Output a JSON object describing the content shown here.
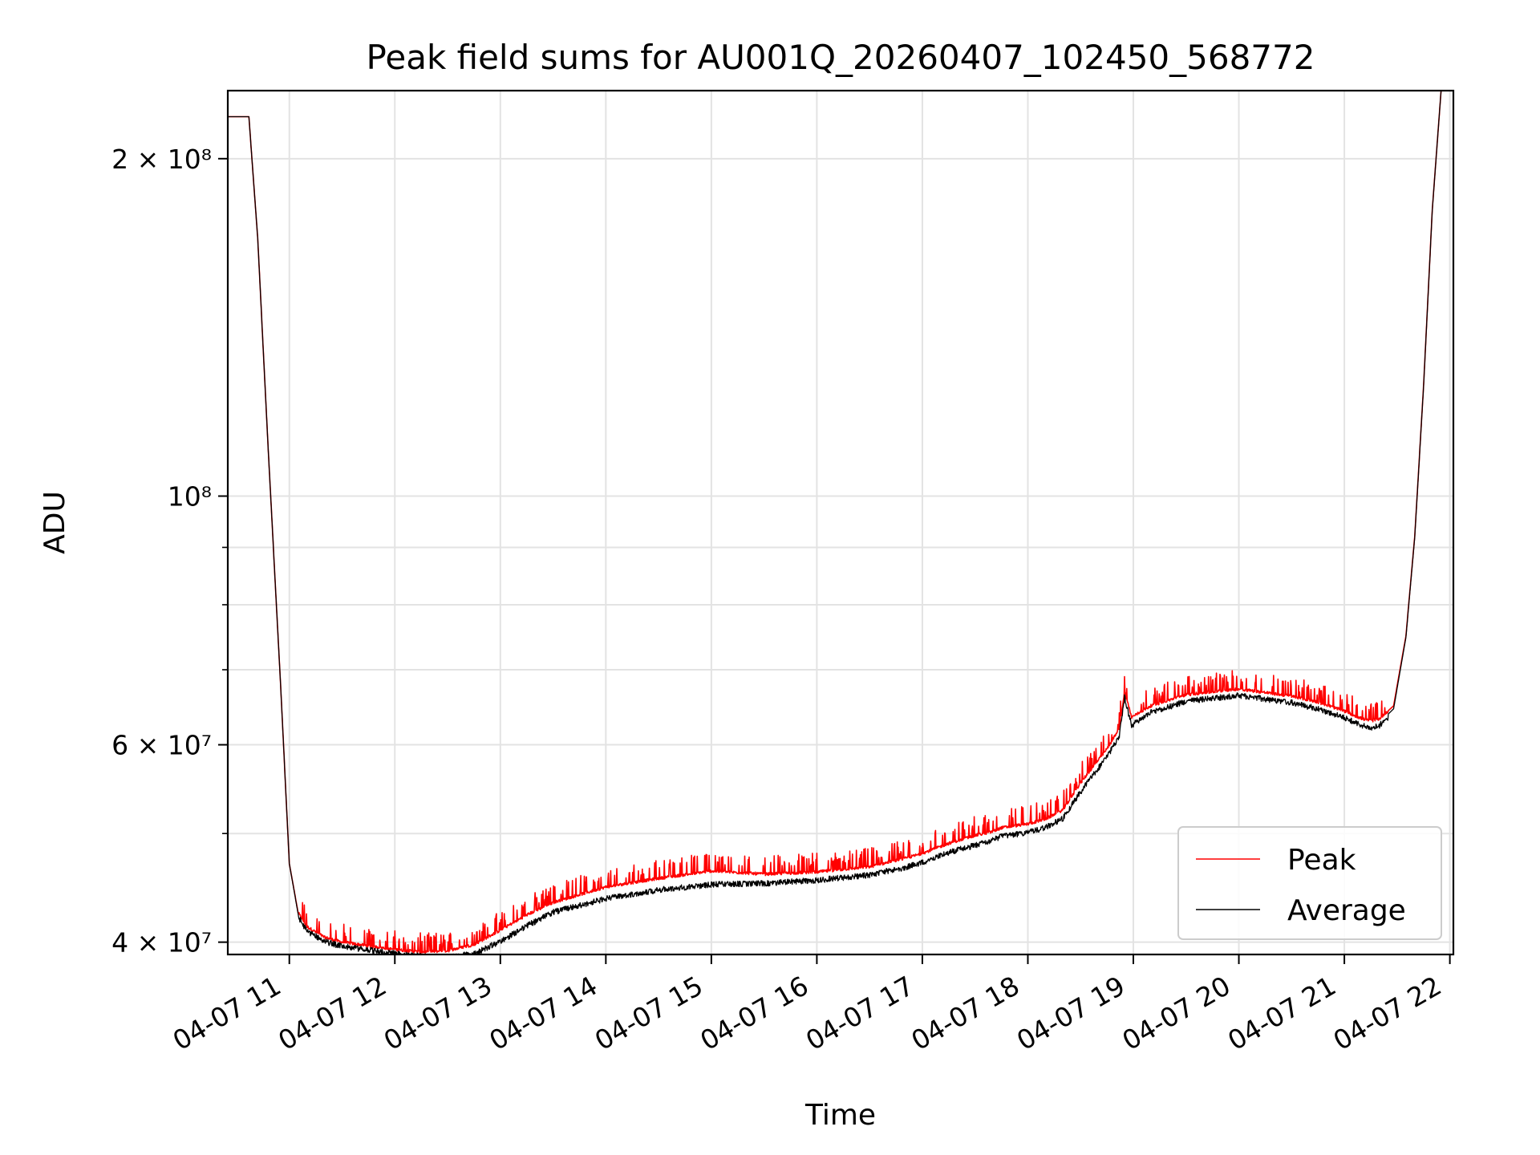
{
  "chart_data": {
    "type": "line",
    "title": "Peak field sums for AU001Q_20260407_102450_568772",
    "xlabel": "Time",
    "ylabel": "ADU",
    "yscale": "log",
    "ylim": [
      39000000,
      230000000
    ],
    "xlim": [
      "2026-04-07 10:25",
      "2026-04-07 22:02"
    ],
    "grid": true,
    "legend_position": "lower-right",
    "x_ticks": [
      {
        "t": "2026-04-07 11:00",
        "label": "04-07 11"
      },
      {
        "t": "2026-04-07 12:00",
        "label": "04-07 12"
      },
      {
        "t": "2026-04-07 13:00",
        "label": "04-07 13"
      },
      {
        "t": "2026-04-07 14:00",
        "label": "04-07 14"
      },
      {
        "t": "2026-04-07 15:00",
        "label": "04-07 15"
      },
      {
        "t": "2026-04-07 16:00",
        "label": "04-07 16"
      },
      {
        "t": "2026-04-07 17:00",
        "label": "04-07 17"
      },
      {
        "t": "2026-04-07 18:00",
        "label": "04-07 18"
      },
      {
        "t": "2026-04-07 19:00",
        "label": "04-07 19"
      },
      {
        "t": "2026-04-07 20:00",
        "label": "04-07 20"
      },
      {
        "t": "2026-04-07 21:00",
        "label": "04-07 21"
      },
      {
        "t": "2026-04-07 22:00",
        "label": "04-07 22"
      }
    ],
    "y_ticks": [
      {
        "value": 40000000,
        "label": "4 × 10⁷"
      },
      {
        "value": 60000000,
        "label": "6 × 10⁷"
      },
      {
        "value": 100000000,
        "label": "10⁸"
      },
      {
        "value": 200000000,
        "label": "2 × 10⁸"
      }
    ],
    "y_minor_ticks": [
      50000000,
      70000000,
      80000000,
      90000000
    ],
    "series": [
      {
        "name": "Peak",
        "color": "#ff0000",
        "noise": "spiky",
        "x": [
          "2026-04-07 10:25",
          "2026-04-07 10:35",
          "2026-04-07 10:37",
          "2026-04-07 10:42",
          "2026-04-07 10:48",
          "2026-04-07 10:55",
          "2026-04-07 11:00",
          "2026-04-07 11:05",
          "2026-04-07 11:10",
          "2026-04-07 11:20",
          "2026-04-07 11:30",
          "2026-04-07 11:45",
          "2026-04-07 12:00",
          "2026-04-07 12:15",
          "2026-04-07 12:30",
          "2026-04-07 12:45",
          "2026-04-07 13:00",
          "2026-04-07 13:15",
          "2026-04-07 13:30",
          "2026-04-07 14:00",
          "2026-04-07 14:30",
          "2026-04-07 15:00",
          "2026-04-07 15:30",
          "2026-04-07 16:00",
          "2026-04-07 16:30",
          "2026-04-07 16:50",
          "2026-04-07 17:00",
          "2026-04-07 17:15",
          "2026-04-07 17:30",
          "2026-04-07 17:40",
          "2026-04-07 17:45",
          "2026-04-07 18:00",
          "2026-04-07 18:10",
          "2026-04-07 18:20",
          "2026-04-07 18:30",
          "2026-04-07 18:45",
          "2026-04-07 18:52",
          "2026-04-07 18:55",
          "2026-04-07 18:59",
          "2026-04-07 19:10",
          "2026-04-07 19:30",
          "2026-04-07 20:00",
          "2026-04-07 20:30",
          "2026-04-07 20:45",
          "2026-04-07 21:00",
          "2026-04-07 21:10",
          "2026-04-07 21:15",
          "2026-04-07 21:20",
          "2026-04-07 21:28",
          "2026-04-07 21:35",
          "2026-04-07 21:40",
          "2026-04-07 21:45",
          "2026-04-07 21:50",
          "2026-04-07 21:55",
          "2026-04-07 22:02"
        ],
        "values": [
          218000000,
          218000000,
          218000000,
          170000000,
          110000000,
          68000000,
          47000000,
          42500000,
          41300000,
          40400000,
          40000000,
          39700000,
          39400000,
          39200000,
          39300000,
          39800000,
          41000000,
          42300000,
          43400000,
          44800000,
          45600000,
          46300000,
          46000000,
          46200000,
          46700000,
          47500000,
          48000000,
          49000000,
          49800000,
          50200000,
          50600000,
          51000000,
          51500000,
          52500000,
          55500000,
          59500000,
          62000000,
          67000000,
          63500000,
          65000000,
          66500000,
          67300000,
          66300000,
          65500000,
          64300000,
          63300000,
          63000000,
          63300000,
          65000000,
          75000000,
          92000000,
          125000000,
          180000000,
          230000000,
          230000000
        ]
      },
      {
        "name": "Average",
        "color": "#000000",
        "noise": "dense",
        "x": [
          "2026-04-07 10:25",
          "2026-04-07 10:35",
          "2026-04-07 10:37",
          "2026-04-07 10:42",
          "2026-04-07 10:48",
          "2026-04-07 10:55",
          "2026-04-07 11:00",
          "2026-04-07 11:05",
          "2026-04-07 11:10",
          "2026-04-07 11:20",
          "2026-04-07 11:30",
          "2026-04-07 11:45",
          "2026-04-07 12:00",
          "2026-04-07 12:15",
          "2026-04-07 12:30",
          "2026-04-07 12:45",
          "2026-04-07 13:00",
          "2026-04-07 13:15",
          "2026-04-07 13:30",
          "2026-04-07 14:00",
          "2026-04-07 14:30",
          "2026-04-07 15:00",
          "2026-04-07 15:30",
          "2026-04-07 16:00",
          "2026-04-07 16:30",
          "2026-04-07 16:50",
          "2026-04-07 17:00",
          "2026-04-07 17:15",
          "2026-04-07 17:30",
          "2026-04-07 17:40",
          "2026-04-07 17:45",
          "2026-04-07 18:00",
          "2026-04-07 18:10",
          "2026-04-07 18:20",
          "2026-04-07 18:30",
          "2026-04-07 18:45",
          "2026-04-07 18:52",
          "2026-04-07 18:55",
          "2026-04-07 18:59",
          "2026-04-07 19:10",
          "2026-04-07 19:30",
          "2026-04-07 20:00",
          "2026-04-07 20:30",
          "2026-04-07 20:45",
          "2026-04-07 21:00",
          "2026-04-07 21:10",
          "2026-04-07 21:15",
          "2026-04-07 21:20",
          "2026-04-07 21:28",
          "2026-04-07 21:35",
          "2026-04-07 21:40",
          "2026-04-07 21:45",
          "2026-04-07 21:50",
          "2026-04-07 21:55",
          "2026-04-07 22:02"
        ],
        "values": [
          218000000,
          218000000,
          218000000,
          170000000,
          110000000,
          68000000,
          47000000,
          42400000,
          41200000,
          40300000,
          39900000,
          39600000,
          39300000,
          39100000,
          39000000,
          39300000,
          40300000,
          41600000,
          42800000,
          44000000,
          44800000,
          45300000,
          45400000,
          45700000,
          46200000,
          46900000,
          47400000,
          48400000,
          49100000,
          49600000,
          50000000,
          50400000,
          50900000,
          51900000,
          54800000,
          58900000,
          61400000,
          66500000,
          62800000,
          64500000,
          66000000,
          66800000,
          65800000,
          65000000,
          63800000,
          62800000,
          62400000,
          62800000,
          64600000,
          74800000,
          91800000,
          124800000,
          179800000,
          230000000,
          230000000
        ]
      }
    ]
  }
}
